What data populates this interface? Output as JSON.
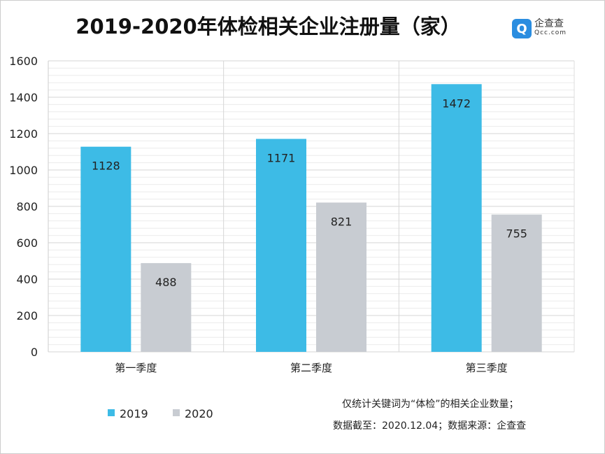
{
  "header": {
    "title": "2019-2020年体检相关企业注册量（家）",
    "logo_name": "企查查",
    "logo_domain": "Qcc.com"
  },
  "chart_data": {
    "type": "bar",
    "title": "2019-2020年体检相关企业注册量（家）",
    "categories": [
      "第一季度",
      "第二季度",
      "第三季度"
    ],
    "series": [
      {
        "name": "2019",
        "color": "#3dbbe6",
        "values": [
          1128,
          1171,
          1472
        ]
      },
      {
        "name": "2020",
        "color": "#c8ccd2",
        "values": [
          488,
          821,
          755
        ]
      }
    ],
    "ylim": [
      0,
      1600
    ],
    "yticks": [
      0,
      200,
      400,
      600,
      800,
      1000,
      1200,
      1400,
      1600
    ],
    "grid": true,
    "legend": "bottom-left"
  },
  "footer": {
    "note1": "仅统计关键词为“体检”的相关企业数量；",
    "note2": "数据截至：2020.12.04；数据来源：企查查"
  }
}
